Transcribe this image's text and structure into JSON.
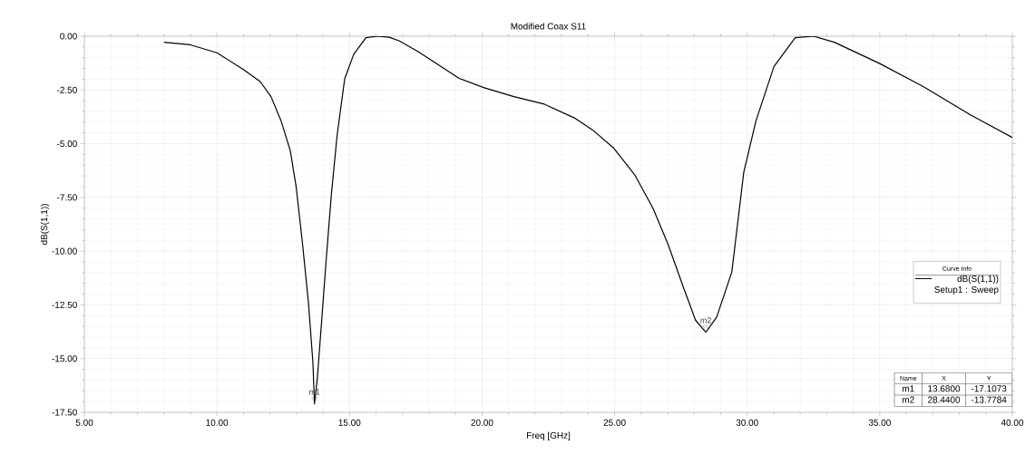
{
  "chart_data": {
    "type": "line",
    "title": "Modified Coax S11",
    "xlabel": "Freq [GHz]",
    "ylabel": "dB(S(1,1))",
    "legend_title": "Curve Info",
    "legend": "bottom right",
    "grid": true,
    "marker": "none",
    "line_style": "solid",
    "xlim": [
      5,
      40
    ],
    "ylim": [
      -17.5,
      0
    ],
    "xticks": [
      {
        "value": 5,
        "label": "5.00"
      },
      {
        "value": 10,
        "label": "10.00"
      },
      {
        "value": 15,
        "label": "15.00"
      },
      {
        "value": 20,
        "label": "20.00"
      },
      {
        "value": 25,
        "label": "25.00"
      },
      {
        "value": 30,
        "label": "30.00"
      },
      {
        "value": 35,
        "label": "35.00"
      },
      {
        "value": 40,
        "label": "40.00"
      }
    ],
    "yticks": [
      {
        "value": -17.5,
        "label": "-17.50"
      },
      {
        "value": -15,
        "label": "-15.00"
      },
      {
        "value": -12.5,
        "label": "-12.50"
      },
      {
        "value": -10,
        "label": "-10.00"
      },
      {
        "value": -7.5,
        "label": "-7.50"
      },
      {
        "value": -5,
        "label": "-5.00"
      },
      {
        "value": -2.5,
        "label": "-2.50"
      },
      {
        "value": 0,
        "label": "0.00"
      }
    ],
    "series": [
      {
        "name": "dB(S(1,1)) Setup1 : Sweep",
        "color": "#000000",
        "x": [
          8.0,
          9.0,
          10.0,
          11.0,
          11.63,
          12.04,
          12.42,
          12.77,
          12.99,
          13.22,
          13.45,
          13.62,
          13.68,
          13.79,
          13.96,
          14.13,
          14.31,
          14.53,
          14.82,
          15.16,
          15.62,
          16.07,
          16.5,
          16.87,
          17.56,
          18.01,
          19.15,
          20.06,
          21.2,
          22.35,
          23.48,
          24.17,
          24.97,
          25.77,
          26.45,
          27.02,
          27.59,
          28.05,
          28.44,
          28.85,
          29.42,
          29.87,
          30.33,
          31.01,
          31.81,
          32.5,
          33.29,
          35.0,
          36.71,
          38.42,
          40.0
        ],
        "values": [
          -0.28,
          -0.4,
          -0.77,
          -1.55,
          -2.11,
          -2.81,
          -3.94,
          -5.34,
          -7.03,
          -9.56,
          -12.37,
          -15.18,
          -17.1073,
          -15.88,
          -13.07,
          -10.26,
          -7.45,
          -4.64,
          -1.97,
          -0.84,
          -0.07,
          0.0,
          -0.05,
          -0.21,
          -0.7,
          -1.05,
          -1.97,
          -2.39,
          -2.81,
          -3.16,
          -3.8,
          -4.36,
          -5.21,
          -6.47,
          -8.01,
          -9.7,
          -11.67,
          -13.21,
          -13.7784,
          -13.07,
          -10.97,
          -6.33,
          -3.94,
          -1.41,
          -0.07,
          0.0,
          -0.28,
          -1.27,
          -2.39,
          -3.66,
          -4.71
        ]
      }
    ],
    "annotations": [
      {
        "text": "m1",
        "x": 13.68,
        "y": -17.1073
      },
      {
        "text": "m2",
        "x": 28.44,
        "y": -13.7784
      },
      "Name",
      "X",
      "Y",
      "m1",
      "13.6800",
      "-17.1073",
      "m2",
      "28.4400",
      "-13.7784"
    ]
  }
}
